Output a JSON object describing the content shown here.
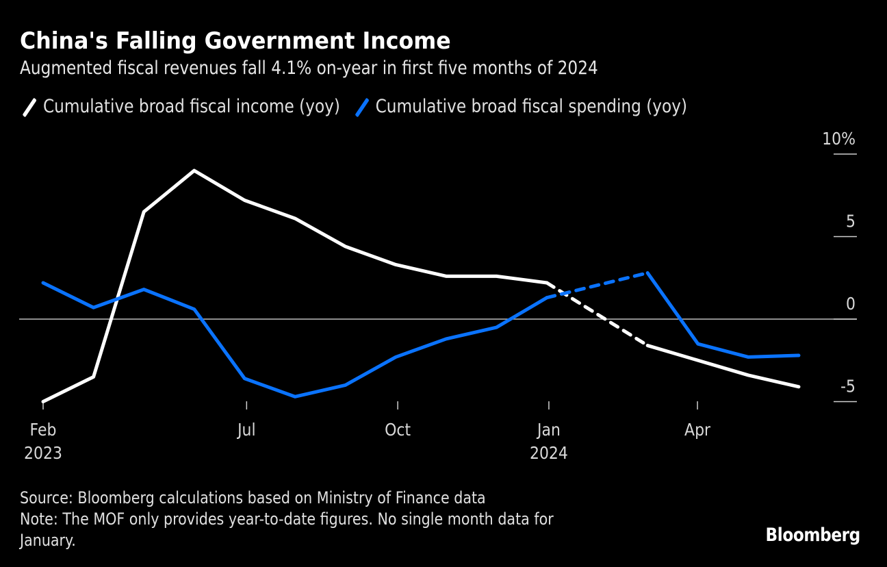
{
  "header": {
    "title": "China's Falling Government Income",
    "subtitle": "Augmented fiscal revenues fall 4.1% on-year in first five months of 2024"
  },
  "footer": {
    "source": "Source: Bloomberg calculations based on Ministry of Finance data",
    "note_line1": "Note: The MOF only provides year-to-date figures. No single month data for",
    "note_line2": "January.",
    "brand": "Bloomberg"
  },
  "chart_data": {
    "type": "line",
    "title": "China's Falling Government Income",
    "subtitle": "Augmented fiscal revenues fall 4.1% on-year in first five months of 2024",
    "xlabel": "",
    "ylabel": "",
    "y_unit": "%",
    "ylim": [
      -5,
      10
    ],
    "yticks": [
      {
        "value": 10,
        "label": "10%"
      },
      {
        "value": 5,
        "label": "5"
      },
      {
        "value": 0,
        "label": "0"
      },
      {
        "value": -5,
        "label": "-5"
      }
    ],
    "grid": false,
    "zero_line": true,
    "legend_position": "top-left",
    "x": [
      "Feb 2023",
      "Mar 2023",
      "Apr 2023",
      "May 2023",
      "Jun 2023",
      "Jul 2023",
      "Aug 2023",
      "Sep 2023",
      "Oct 2023",
      "Nov 2023",
      "Dec 2023",
      "Jan 2024",
      "Feb 2024",
      "Mar 2024",
      "Apr 2024",
      "May 2024"
    ],
    "xticks": [
      {
        "label": "Feb",
        "sublabel": "2023",
        "at": 0
      },
      {
        "label": "Jul",
        "sublabel": "",
        "at": 4.04
      },
      {
        "label": "Oct",
        "sublabel": "",
        "at": 7.04
      },
      {
        "label": "Jan",
        "sublabel": "2024",
        "at": 10.04
      },
      {
        "label": "Apr",
        "sublabel": "",
        "at": 12.99
      }
    ],
    "series": [
      {
        "name": "Cumulative broad fiscal income (yoy)",
        "color": "#ffffff",
        "values": [
          -5.0,
          -3.5,
          6.5,
          9.0,
          7.2,
          6.1,
          4.4,
          3.3,
          2.6,
          2.6,
          2.2,
          null,
          -1.6,
          -2.5,
          -3.4,
          -4.1
        ]
      },
      {
        "name": "Cumulative broad fiscal spending (yoy)",
        "color": "#0a73ff",
        "values": [
          2.2,
          0.7,
          1.8,
          0.6,
          -3.6,
          -4.7,
          -4.0,
          -2.3,
          -1.2,
          -0.5,
          1.3,
          null,
          2.8,
          -1.5,
          -2.3,
          -2.2
        ]
      }
    ],
    "gap_note": "Dashed segment bridges missing January 2024 data"
  }
}
